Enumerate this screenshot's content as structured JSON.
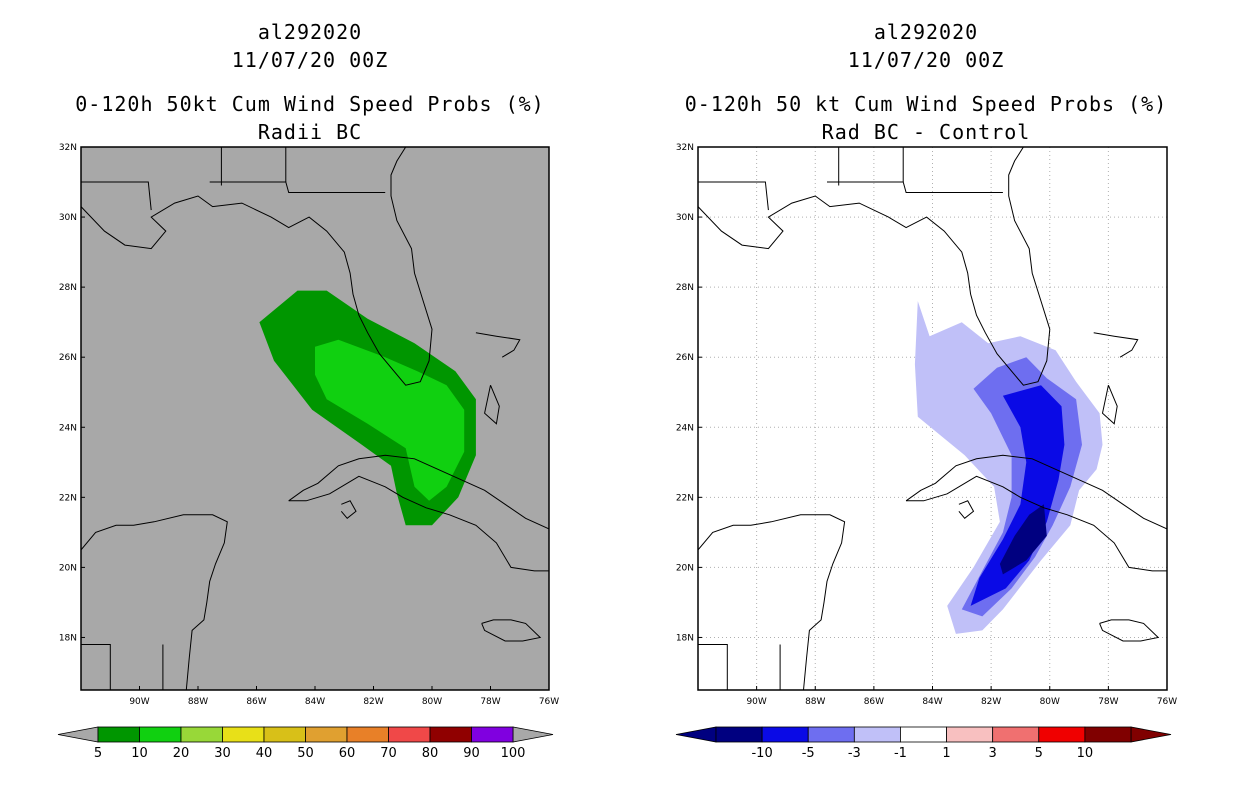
{
  "chart_data": [
    {
      "type": "map-contour",
      "title_lines": [
        "al292020",
        "11/07/20 00Z",
        "0-120h 50kt Cum Wind Speed Probs (%)",
        "Radii BC"
      ],
      "lon_range": [
        -92,
        -76
      ],
      "lat_range": [
        16.5,
        32
      ],
      "x_tick_labels": [
        "90W",
        "88W",
        "86W",
        "84W",
        "82W",
        "80W",
        "78W",
        "76W"
      ],
      "x_tick_values": [
        -90,
        -88,
        -86,
        -84,
        -82,
        -80,
        -78,
        -76
      ],
      "y_tick_labels": [
        "18N",
        "20N",
        "22N",
        "24N",
        "26N",
        "28N",
        "30N",
        "32N"
      ],
      "y_tick_values": [
        18,
        20,
        22,
        24,
        26,
        28,
        30,
        32
      ],
      "grid": false,
      "background_color": "#a8a8a8",
      "colorbar": {
        "colors": [
          "#009600",
          "#10d010",
          "#98d838",
          "#e8e018",
          "#d8c018",
          "#e0a030",
          "#e88028",
          "#f04848",
          "#900000",
          "#8000e0"
        ],
        "labels": [
          "5",
          "10",
          "20",
          "30",
          "40",
          "50",
          "60",
          "70",
          "80",
          "90",
          "100"
        ]
      },
      "contours": [
        {
          "level": "5-10",
          "color": "#009600",
          "polygon": [
            [
              -85.9,
              27.0
            ],
            [
              -84.6,
              27.9
            ],
            [
              -83.6,
              27.9
            ],
            [
              -82.2,
              27.1
            ],
            [
              -80.6,
              26.4
            ],
            [
              -79.2,
              25.6
            ],
            [
              -78.5,
              24.8
            ],
            [
              -78.5,
              23.2
            ],
            [
              -79.1,
              22.0
            ],
            [
              -80.0,
              21.2
            ],
            [
              -80.9,
              21.2
            ],
            [
              -81.2,
              22.1
            ],
            [
              -81.4,
              22.9
            ],
            [
              -82.4,
              23.5
            ],
            [
              -84.1,
              24.5
            ],
            [
              -85.4,
              25.9
            ]
          ]
        },
        {
          "level": "10-20",
          "color": "#10d010",
          "polygon": [
            [
              -84.0,
              25.5
            ],
            [
              -84.0,
              26.3
            ],
            [
              -83.2,
              26.5
            ],
            [
              -81.6,
              26.0
            ],
            [
              -80.5,
              25.6
            ],
            [
              -79.5,
              25.2
            ],
            [
              -78.9,
              24.5
            ],
            [
              -78.9,
              23.3
            ],
            [
              -79.5,
              22.3
            ],
            [
              -80.1,
              21.9
            ],
            [
              -80.6,
              22.3
            ],
            [
              -80.9,
              23.4
            ],
            [
              -82.2,
              24.1
            ],
            [
              -83.6,
              24.8
            ]
          ]
        }
      ]
    },
    {
      "type": "map-contour",
      "title_lines": [
        "al292020",
        "11/07/20 00Z",
        "0-120h 50 kt Cum Wind Speed Probs (%)",
        "Rad BC - Control"
      ],
      "lon_range": [
        -92,
        -76
      ],
      "lat_range": [
        16.5,
        32
      ],
      "x_tick_labels": [
        "90W",
        "88W",
        "86W",
        "84W",
        "82W",
        "80W",
        "78W",
        "76W"
      ],
      "x_tick_values": [
        -90,
        -88,
        -86,
        -84,
        -82,
        -80,
        -78,
        -76
      ],
      "y_tick_labels": [
        "18N",
        "20N",
        "22N",
        "24N",
        "26N",
        "28N",
        "30N",
        "32N"
      ],
      "y_tick_values": [
        18,
        20,
        22,
        24,
        26,
        28,
        30,
        32
      ],
      "grid": true,
      "background_color": "#ffffff",
      "colorbar": {
        "colors": [
          "#000080",
          "#0a0ae6",
          "#6e6ef0",
          "#c0c0f8",
          "#ffffff",
          "#f8c0c0",
          "#f07070",
          "#f00000",
          "#800000"
        ],
        "labels": [
          "-10",
          "-5",
          "-3",
          "-1",
          "1",
          "3",
          "5",
          "10"
        ]
      },
      "contours": [
        {
          "level": "-3 to -1",
          "color": "#c0c0f8",
          "polygon": [
            [
              -84.5,
              27.6
            ],
            [
              -84.1,
              26.6
            ],
            [
              -83.0,
              27.0
            ],
            [
              -82.1,
              26.4
            ],
            [
              -81.0,
              26.6
            ],
            [
              -79.8,
              26.2
            ],
            [
              -79.1,
              25.3
            ],
            [
              -78.3,
              24.4
            ],
            [
              -78.2,
              23.5
            ],
            [
              -78.4,
              22.8
            ],
            [
              -79.0,
              22.2
            ],
            [
              -79.3,
              21.2
            ],
            [
              -80.3,
              20.2
            ],
            [
              -81.6,
              18.8
            ],
            [
              -82.3,
              18.2
            ],
            [
              -83.2,
              18.1
            ],
            [
              -83.5,
              18.9
            ],
            [
              -82.6,
              20.0
            ],
            [
              -81.7,
              21.3
            ],
            [
              -81.9,
              22.3
            ],
            [
              -82.9,
              23.2
            ],
            [
              -84.5,
              24.3
            ],
            [
              -84.6,
              25.8
            ]
          ]
        },
        {
          "level": "-5 to -3",
          "color": "#6e6ef0",
          "polygon": [
            [
              -81.8,
              25.7
            ],
            [
              -80.8,
              26.0
            ],
            [
              -80.1,
              25.4
            ],
            [
              -79.1,
              24.8
            ],
            [
              -78.9,
              23.5
            ],
            [
              -79.3,
              22.3
            ],
            [
              -79.9,
              21.2
            ],
            [
              -80.5,
              20.3
            ],
            [
              -81.3,
              19.4
            ],
            [
              -82.3,
              18.6
            ],
            [
              -83.0,
              18.8
            ],
            [
              -82.3,
              19.9
            ],
            [
              -81.6,
              21.0
            ],
            [
              -81.3,
              22.0
            ],
            [
              -81.3,
              23.2
            ],
            [
              -82.0,
              24.4
            ],
            [
              -82.6,
              25.1
            ]
          ]
        },
        {
          "level": "-10 to -5",
          "color": "#0a0ae6",
          "polygon": [
            [
              -81.6,
              24.9
            ],
            [
              -80.3,
              25.2
            ],
            [
              -79.6,
              24.6
            ],
            [
              -79.5,
              23.5
            ],
            [
              -79.7,
              22.5
            ],
            [
              -80.1,
              21.3
            ],
            [
              -80.7,
              20.2
            ],
            [
              -81.5,
              19.4
            ],
            [
              -82.7,
              18.9
            ],
            [
              -82.4,
              19.7
            ],
            [
              -81.6,
              20.8
            ],
            [
              -81.0,
              21.8
            ],
            [
              -80.8,
              23.0
            ],
            [
              -81.0,
              24.0
            ]
          ]
        },
        {
          "level": "< -10",
          "color": "#000080",
          "polygon": [
            [
              -80.2,
              21.8
            ],
            [
              -80.1,
              20.9
            ],
            [
              -80.8,
              20.2
            ],
            [
              -81.6,
              19.8
            ],
            [
              -81.7,
              20.1
            ],
            [
              -81.2,
              20.9
            ],
            [
              -80.7,
              21.5
            ]
          ]
        }
      ]
    }
  ]
}
